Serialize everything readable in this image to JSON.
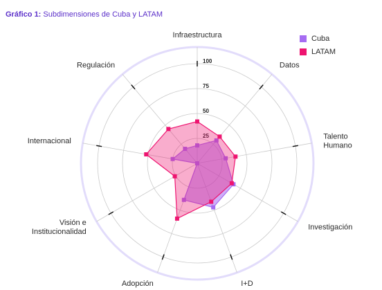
{
  "chart_data": {
    "type": "radar",
    "title": "Gráfico 1:",
    "subtitle": "Subdimensiones de Cuba y LATAM",
    "categories": [
      "Infraestructura",
      "Datos",
      "Talento\nHumano",
      "Investigación",
      "I+D",
      "Adopción",
      "Visión e\nInstitucionalidad",
      "Internacional",
      "Regulación"
    ],
    "rlim": [
      0,
      100
    ],
    "rticks": [
      25,
      50,
      75,
      100
    ],
    "legend": "top-right",
    "series": [
      {
        "name": "Cuba",
        "color": "#a66cf2",
        "values": [
          18,
          30,
          29,
          42,
          47,
          39,
          0,
          25,
          19
        ]
      },
      {
        "name": "LATAM",
        "color": "#ee1470",
        "values": [
          42,
          35,
          39,
          40,
          41,
          59,
          26,
          52,
          45
        ]
      }
    ]
  }
}
